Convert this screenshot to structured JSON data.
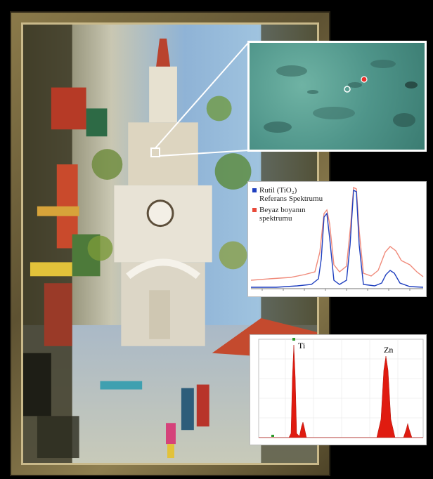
{
  "raman": {
    "legend": [
      {
        "label_line1": "Rutil (TiO₂)",
        "label_line2": "Referans Spektrumu",
        "color": "#1f3fbf"
      },
      {
        "label_line1": "Beyaz boyanın",
        "label_line2": "spektrumu",
        "color": "#e84a3a"
      }
    ]
  },
  "edx": {
    "peak_ti": "Ti",
    "peak_zn": "Zn",
    "fill_color": "#e01b10"
  }
}
